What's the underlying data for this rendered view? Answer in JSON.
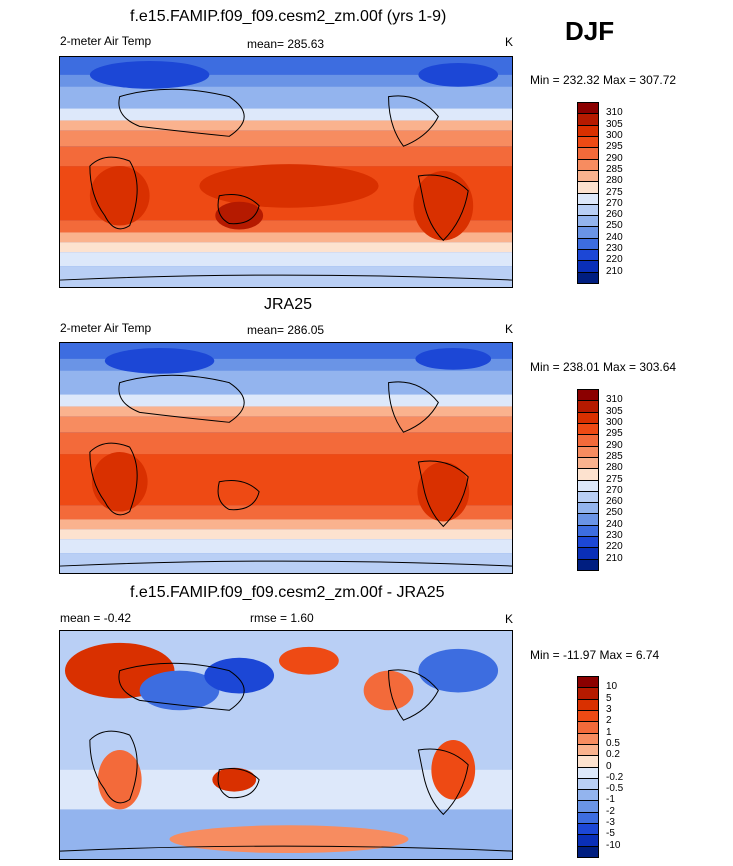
{
  "season": "DJF",
  "panels": [
    {
      "title": "f.e15.FAMIP.f09_f09.cesm2_zm.00f (yrs 1-9)",
      "left_label": "2-meter Air Temp",
      "center_label": "mean= 285.63",
      "units": "K",
      "minmax": "Min = 232.32 Max = 307.72"
    },
    {
      "title": "JRA25",
      "left_label": "2-meter Air Temp",
      "center_label": "mean= 286.05",
      "units": "K",
      "minmax": "Min = 238.01 Max = 303.64"
    },
    {
      "title": "f.e15.FAMIP.f09_f09.cesm2_zm.00f - JRA25",
      "left_label": "mean =  -0.42",
      "center_label": "rmse =   1.60",
      "units": "K",
      "minmax": "Min = -11.97 Max =   6.74"
    }
  ],
  "chart_data": [
    {
      "type": "heatmap",
      "title": "f.e15.FAMIP.f09_f09.cesm2_zm.00f (yrs 1-9)",
      "variable": "2-meter Air Temp",
      "units": "K",
      "mean": 285.63,
      "min": 232.32,
      "max": 307.72,
      "colorbar_levels": [
        "310",
        "305",
        "300",
        "295",
        "290",
        "285",
        "280",
        "275",
        "270",
        "260",
        "250",
        "240",
        "230",
        "220",
        "210"
      ],
      "colorbar_colors": [
        "#8b0000",
        "#b51a00",
        "#d93000",
        "#ee4a14",
        "#f36a3a",
        "#f78c60",
        "#fab28e",
        "#fde2cf",
        "#dde8fa",
        "#b9cff5",
        "#93b4ee",
        "#6a94e6",
        "#3d6de0",
        "#1c47d6",
        "#0a2fb8",
        "#001e80"
      ]
    },
    {
      "type": "heatmap",
      "title": "JRA25",
      "variable": "2-meter Air Temp",
      "units": "K",
      "mean": 286.05,
      "min": 238.01,
      "max": 303.64,
      "colorbar_levels": [
        "310",
        "305",
        "300",
        "295",
        "290",
        "285",
        "280",
        "275",
        "270",
        "260",
        "250",
        "240",
        "230",
        "220",
        "210"
      ],
      "colorbar_colors": [
        "#8b0000",
        "#b51a00",
        "#d93000",
        "#ee4a14",
        "#f36a3a",
        "#f78c60",
        "#fab28e",
        "#fde2cf",
        "#dde8fa",
        "#b9cff5",
        "#93b4ee",
        "#6a94e6",
        "#3d6de0",
        "#1c47d6",
        "#0a2fb8",
        "#001e80"
      ]
    },
    {
      "type": "heatmap",
      "title": "f.e15.FAMIP.f09_f09.cesm2_zm.00f - JRA25",
      "units": "K",
      "mean": -0.42,
      "rmse": 1.6,
      "min": -11.97,
      "max": 6.74,
      "colorbar_levels": [
        "10",
        "5",
        "3",
        "2",
        "1",
        "0.5",
        "0.2",
        "0",
        "-0.2",
        "-0.5",
        "-1",
        "-2",
        "-3",
        "-5",
        "-10"
      ],
      "colorbar_colors": [
        "#8b0000",
        "#b51a00",
        "#d93000",
        "#ee4a14",
        "#f36a3a",
        "#f78c60",
        "#fab28e",
        "#fde2cf",
        "#dde8fa",
        "#b9cff5",
        "#93b4ee",
        "#6a94e6",
        "#3d6de0",
        "#1c47d6",
        "#0a2fb8",
        "#001e80"
      ]
    }
  ]
}
